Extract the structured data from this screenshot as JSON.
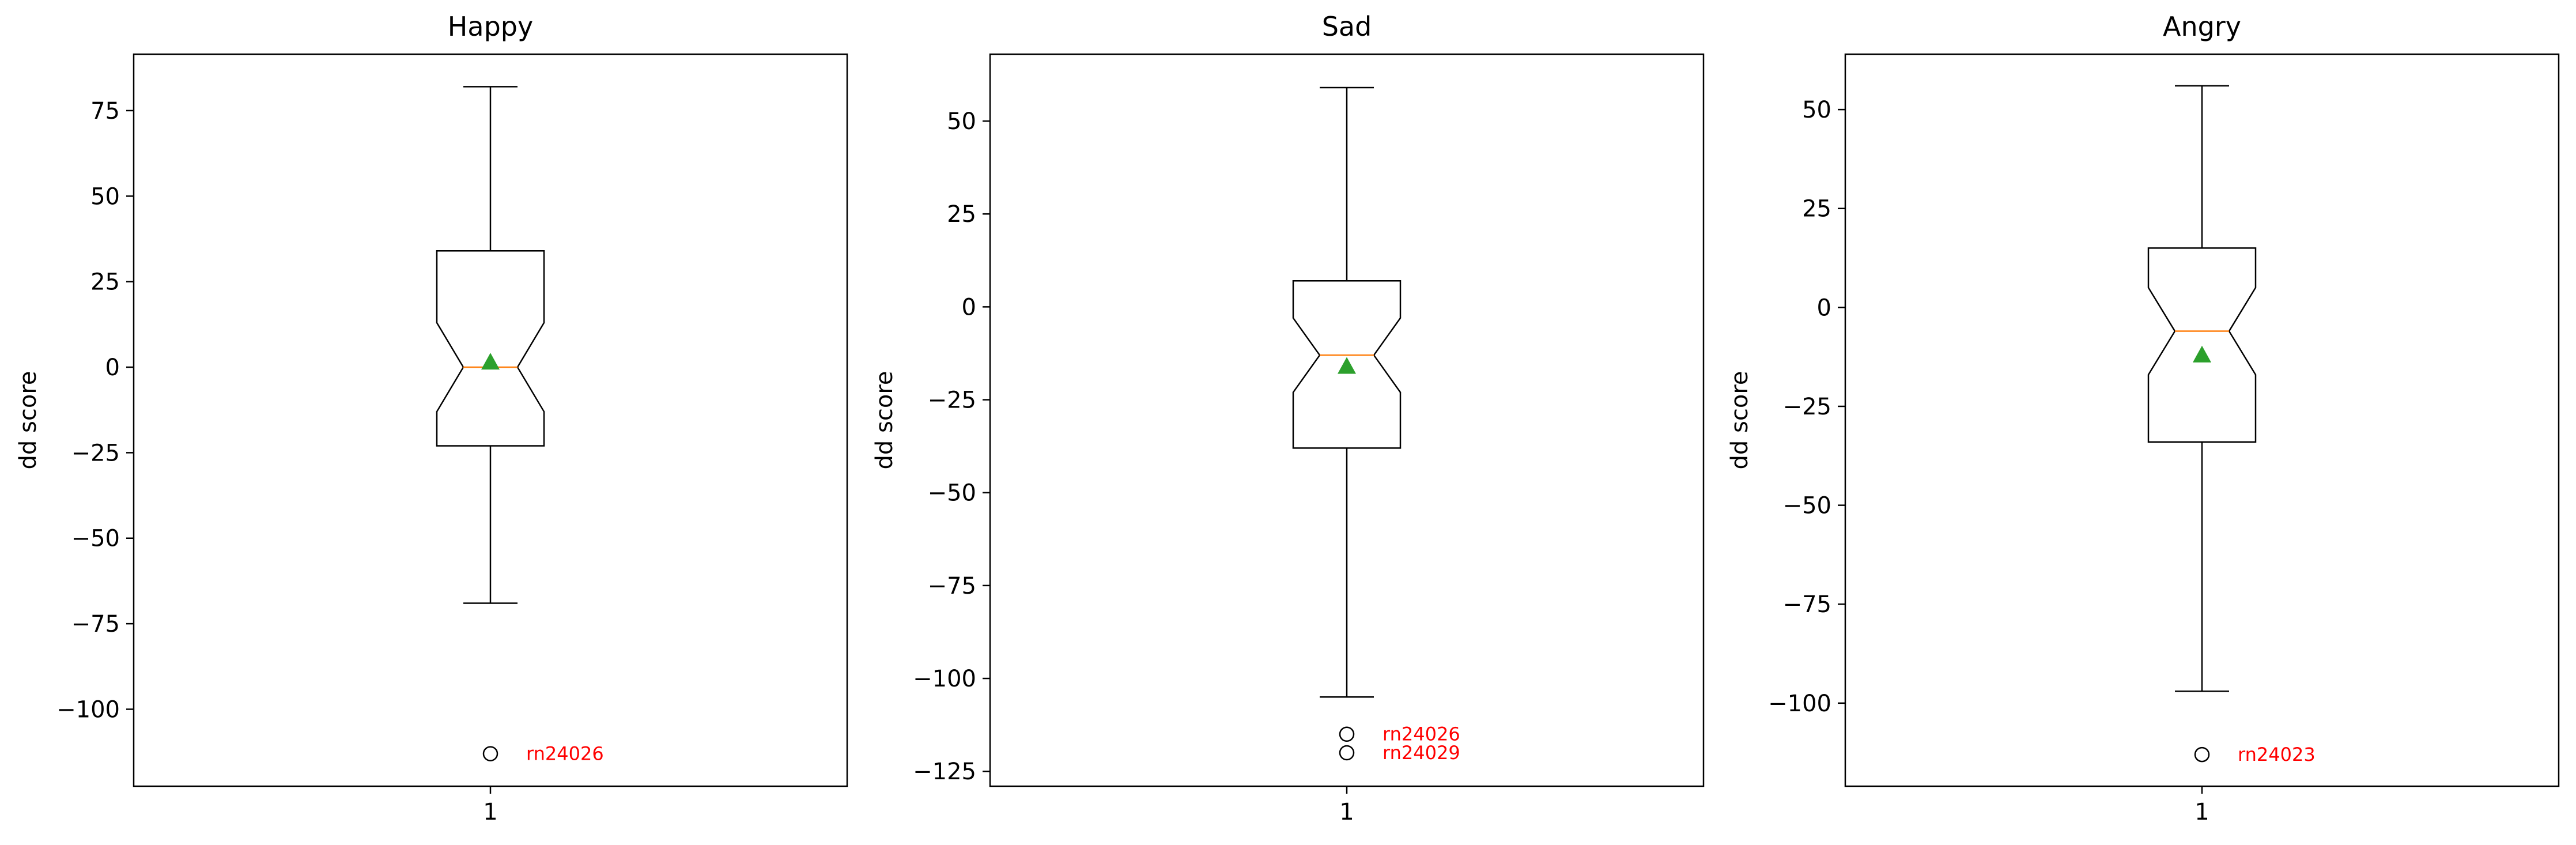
{
  "chart_data": [
    {
      "type": "boxplot",
      "title": "Happy",
      "ylabel": "dd score",
      "xtick_labels": [
        "1"
      ],
      "ylim": [
        -122.5,
        91.5
      ],
      "yticks": [
        75,
        50,
        25,
        0,
        -25,
        -50,
        -75,
        -100
      ],
      "ytick_labels": [
        "75",
        "50",
        "25",
        "0",
        "−25",
        "−50",
        "−75",
        "−100"
      ],
      "box": {
        "whisker_high": 82,
        "q3": 34,
        "notch_high": 13,
        "median": 0,
        "notch_low": -13,
        "q1": -23,
        "whisker_low": -69,
        "mean": 1.5
      },
      "outliers": [
        {
          "value": -113,
          "label": "rn24026"
        }
      ]
    },
    {
      "type": "boxplot",
      "title": "Sad",
      "ylabel": "dd score",
      "xtick_labels": [
        "1"
      ],
      "ylim": [
        -129,
        68
      ],
      "yticks": [
        50,
        25,
        0,
        -25,
        -50,
        -75,
        -100,
        -125
      ],
      "ytick_labels": [
        "50",
        "25",
        "0",
        "−25",
        "−50",
        "−75",
        "−100",
        "−125"
      ],
      "box": {
        "whisker_high": 59,
        "q3": 7,
        "notch_high": -3,
        "median": -13,
        "notch_low": -23,
        "q1": -38,
        "whisker_low": -105,
        "mean": -16
      },
      "outliers": [
        {
          "value": -115,
          "label": "rn24026"
        },
        {
          "value": -120,
          "label": "rn24029"
        }
      ]
    },
    {
      "type": "boxplot",
      "title": "Angry",
      "ylabel": "dd score",
      "xtick_labels": [
        "1"
      ],
      "ylim": [
        -121,
        64
      ],
      "yticks": [
        50,
        25,
        0,
        -25,
        -50,
        -75,
        -100
      ],
      "ytick_labels": [
        "50",
        "25",
        "0",
        "−25",
        "−50",
        "−75",
        "−100"
      ],
      "box": {
        "whisker_high": 56,
        "q3": 15,
        "notch_high": 5,
        "median": -6,
        "notch_low": -17,
        "q1": -34,
        "whisker_low": -97,
        "mean": -12
      },
      "outliers": [
        {
          "value": -113,
          "label": "rn24023"
        }
      ]
    }
  ],
  "colors": {
    "axes": "#000000",
    "median": "#ff7f0e",
    "mean_marker": "#2ca02c",
    "outlier_label": "#ff0000",
    "box": "#000000"
  }
}
